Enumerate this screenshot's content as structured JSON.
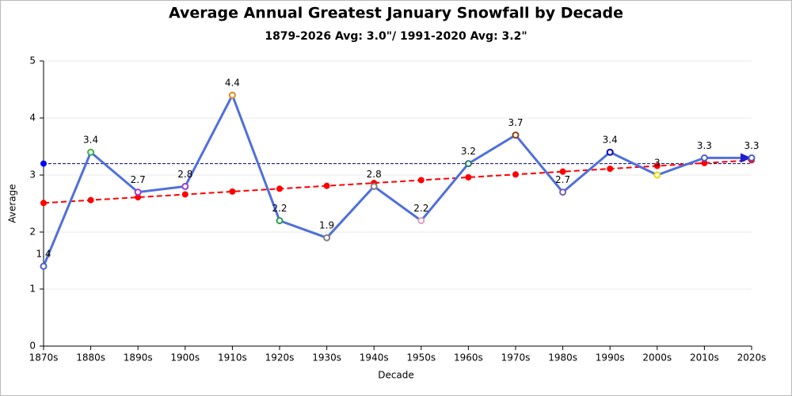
{
  "chart_data": {
    "type": "line",
    "title": "Average Annual Greatest January Snowfall by Decade",
    "subtitle": "1879-2026 Avg: 3.0\"/ 1991-2020 Avg: 3.2\"",
    "x_label": "Decade",
    "y_label": "Average",
    "categories": [
      "1870s",
      "1880s",
      "1890s",
      "1900s",
      "1910s",
      "1920s",
      "1930s",
      "1940s",
      "1950s",
      "1960s",
      "1970s",
      "1980s",
      "1990s",
      "2000s",
      "2010s",
      "2020s"
    ],
    "series": [
      {
        "color": "#4f6fdc",
        "values": [
          1.4,
          3.4,
          2.7,
          2.8,
          4.4,
          2.2,
          1.9,
          2.8,
          2.2,
          3.2,
          3.7,
          2.7,
          3.4,
          3,
          3.3,
          3.3
        ],
        "marker_colors": [
          "#4a5fd0",
          "#3cb043",
          "#9b3fd0",
          "#9b3fd0",
          "#e8871e",
          "#2e9e4f",
          "#808080",
          "#808080",
          "#e0a0c0",
          "#2e7d6b",
          "#8b4513",
          "#7b5fc0",
          "#0000cc",
          "#e6d800",
          "#4a5fd0",
          "#4a5fd0"
        ],
        "show_labels": true
      },
      {
        "color": "#ff0000",
        "dashed": true,
        "values": [
          2.51,
          2.56,
          2.61,
          2.66,
          2.71,
          2.76,
          2.81,
          2.86,
          2.91,
          2.96,
          3.01,
          3.06,
          3.11,
          3.16,
          3.21,
          3.26
        ]
      }
    ],
    "reference_lines": [
      {
        "value": 3.2,
        "color": "#00008b"
      }
    ],
    "ylim": [
      0,
      5
    ],
    "yticks": [
      0,
      1,
      2,
      3,
      4,
      5
    ],
    "grid": true
  }
}
